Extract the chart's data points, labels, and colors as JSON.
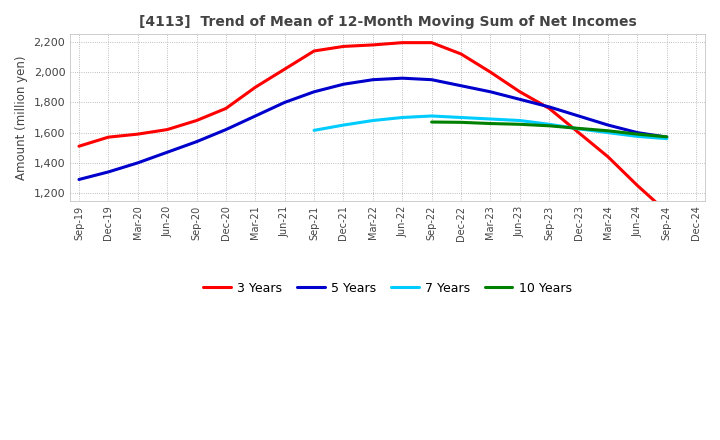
{
  "title": "[4113]  Trend of Mean of 12-Month Moving Sum of Net Incomes",
  "ylabel": "Amount (million yen)",
  "ylim": [
    1150,
    2250
  ],
  "yticks": [
    1200,
    1400,
    1600,
    1800,
    2000,
    2200
  ],
  "background_color": "#ffffff",
  "grid_color": "#aaaaaa",
  "series": {
    "3 Years": {
      "color": "#ff0000",
      "data": [
        [
          "Sep-19",
          1510
        ],
        [
          "Dec-19",
          1570
        ],
        [
          "Mar-20",
          1590
        ],
        [
          "Jun-20",
          1620
        ],
        [
          "Sep-20",
          1680
        ],
        [
          "Dec-20",
          1760
        ],
        [
          "Mar-21",
          1900
        ],
        [
          "Jun-21",
          2020
        ],
        [
          "Sep-21",
          2140
        ],
        [
          "Dec-21",
          2170
        ],
        [
          "Mar-22",
          2180
        ],
        [
          "Jun-22",
          2195
        ],
        [
          "Sep-22",
          2195
        ],
        [
          "Dec-22",
          2120
        ],
        [
          "Mar-23",
          2000
        ],
        [
          "Jun-23",
          1870
        ],
        [
          "Sep-23",
          1760
        ],
        [
          "Dec-23",
          1600
        ],
        [
          "Mar-24",
          1440
        ],
        [
          "Jun-24",
          1250
        ],
        [
          "Sep-24",
          1075
        ]
      ]
    },
    "5 Years": {
      "color": "#0000cc",
      "data": [
        [
          "Sep-19",
          1290
        ],
        [
          "Dec-19",
          1340
        ],
        [
          "Mar-20",
          1400
        ],
        [
          "Jun-20",
          1470
        ],
        [
          "Sep-20",
          1540
        ],
        [
          "Dec-20",
          1620
        ],
        [
          "Mar-21",
          1710
        ],
        [
          "Jun-21",
          1800
        ],
        [
          "Sep-21",
          1870
        ],
        [
          "Dec-21",
          1920
        ],
        [
          "Mar-22",
          1950
        ],
        [
          "Jun-22",
          1960
        ],
        [
          "Sep-22",
          1950
        ],
        [
          "Dec-22",
          1910
        ],
        [
          "Mar-23",
          1870
        ],
        [
          "Jun-23",
          1820
        ],
        [
          "Sep-23",
          1770
        ],
        [
          "Dec-23",
          1710
        ],
        [
          "Mar-24",
          1650
        ],
        [
          "Jun-24",
          1600
        ],
        [
          "Sep-24",
          1570
        ]
      ]
    },
    "7 Years": {
      "color": "#00ccff",
      "data": [
        [
          "Sep-21",
          1615
        ],
        [
          "Dec-21",
          1650
        ],
        [
          "Mar-22",
          1680
        ],
        [
          "Jun-22",
          1700
        ],
        [
          "Sep-22",
          1710
        ],
        [
          "Dec-22",
          1700
        ],
        [
          "Mar-23",
          1690
        ],
        [
          "Jun-23",
          1680
        ],
        [
          "Sep-23",
          1655
        ],
        [
          "Dec-23",
          1625
        ],
        [
          "Mar-24",
          1600
        ],
        [
          "Jun-24",
          1575
        ],
        [
          "Sep-24",
          1560
        ]
      ]
    },
    "10 Years": {
      "color": "#008000",
      "data": [
        [
          "Sep-22",
          1670
        ],
        [
          "Dec-22",
          1668
        ],
        [
          "Mar-23",
          1660
        ],
        [
          "Jun-23",
          1655
        ],
        [
          "Sep-23",
          1645
        ],
        [
          "Dec-23",
          1628
        ],
        [
          "Mar-24",
          1612
        ],
        [
          "Jun-24",
          1590
        ],
        [
          "Sep-24",
          1572
        ]
      ]
    }
  },
  "xtick_labels": [
    "Sep-19",
    "Dec-19",
    "Mar-20",
    "Jun-20",
    "Sep-20",
    "Dec-20",
    "Mar-21",
    "Jun-21",
    "Sep-21",
    "Dec-21",
    "Mar-22",
    "Jun-22",
    "Sep-22",
    "Dec-22",
    "Mar-23",
    "Jun-23",
    "Sep-23",
    "Dec-23",
    "Mar-24",
    "Jun-24",
    "Sep-24",
    "Dec-24"
  ]
}
